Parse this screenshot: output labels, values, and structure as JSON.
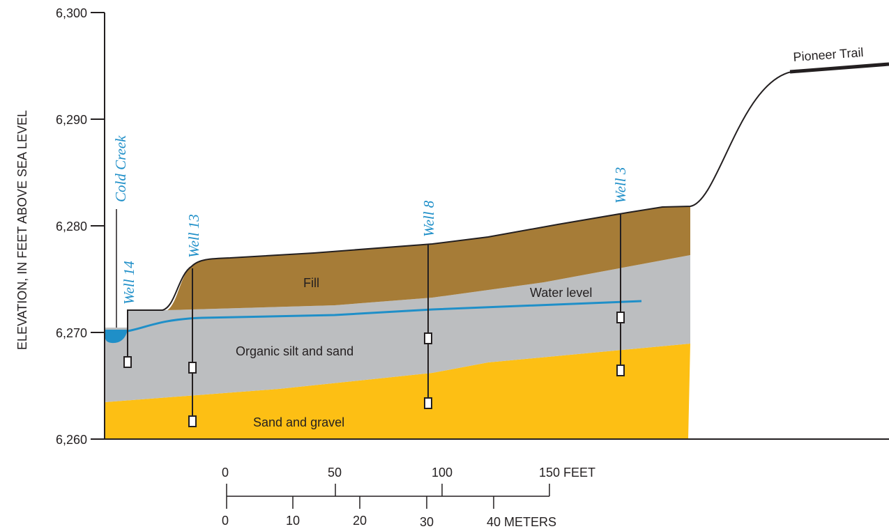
{
  "y_axis": {
    "label": "ELEVATION, IN FEET ABOVE SEA LEVEL",
    "ticks": [
      "6,300",
      "6,290",
      "6,280",
      "6,270",
      "6,260"
    ]
  },
  "features": {
    "creek": "Cold Creek",
    "road": "Pioneer Trail",
    "water": "Water level"
  },
  "layers": [
    "Fill",
    "Organic silt and sand",
    "Sand and gravel"
  ],
  "wells": [
    "Well 14",
    "Well 13",
    "Well 8",
    "Well 3"
  ],
  "scale": {
    "feet": [
      "0",
      "50",
      "100",
      "150 FEET"
    ],
    "meters": [
      "0",
      "10",
      "20",
      "30",
      "40 METERS"
    ]
  }
}
